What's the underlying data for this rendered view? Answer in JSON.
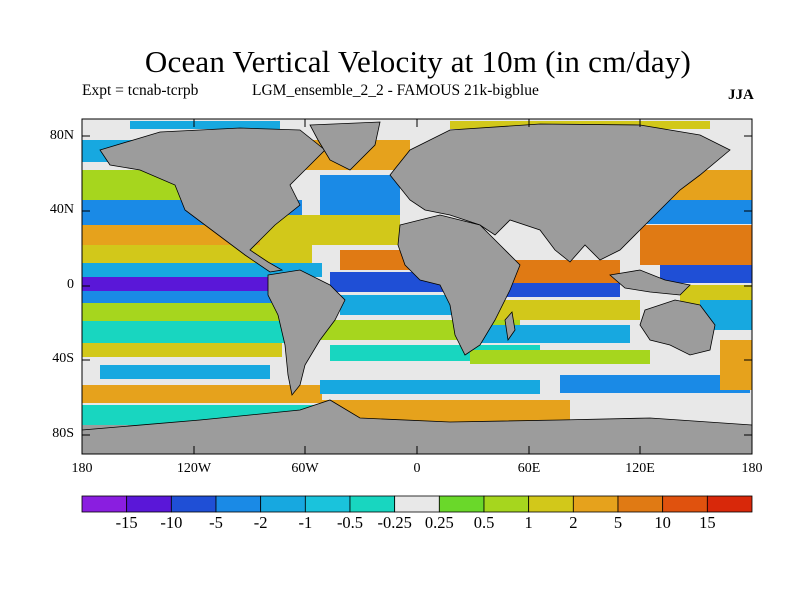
{
  "title": "Ocean Vertical Velocity at 10m (in cm/day)",
  "experiment": "Expt = tcnab-tcrpb",
  "model": "LGM_ensemble_2_2 - FAMOUS 21k-bigblue",
  "season": "JJA",
  "lat_labels": [
    "80N",
    "40N",
    "0",
    "40S",
    "80S"
  ],
  "lon_labels": [
    "180",
    "120W",
    "60W",
    "0",
    "60E",
    "120E",
    "180"
  ],
  "colorbar": {
    "labels": [
      "-15",
      "-10",
      "-5",
      "-2",
      "-1",
      "-0.5",
      "-0.25",
      "0.25",
      "0.5",
      "1",
      "2",
      "5",
      "10",
      "15"
    ],
    "colors": [
      "#8a1ee0",
      "#5a17d8",
      "#1f4fd6",
      "#1a8ae6",
      "#17a8e0",
      "#1ac3dc",
      "#18d6c0",
      "#e8e8e8",
      "#6ad82a",
      "#a6d61e",
      "#d2c81a",
      "#e6a21c",
      "#e07a14",
      "#e0520e",
      "#d8280a"
    ]
  },
  "colors": {
    "land": "#9c9c9c",
    "coast": "#000000"
  }
}
